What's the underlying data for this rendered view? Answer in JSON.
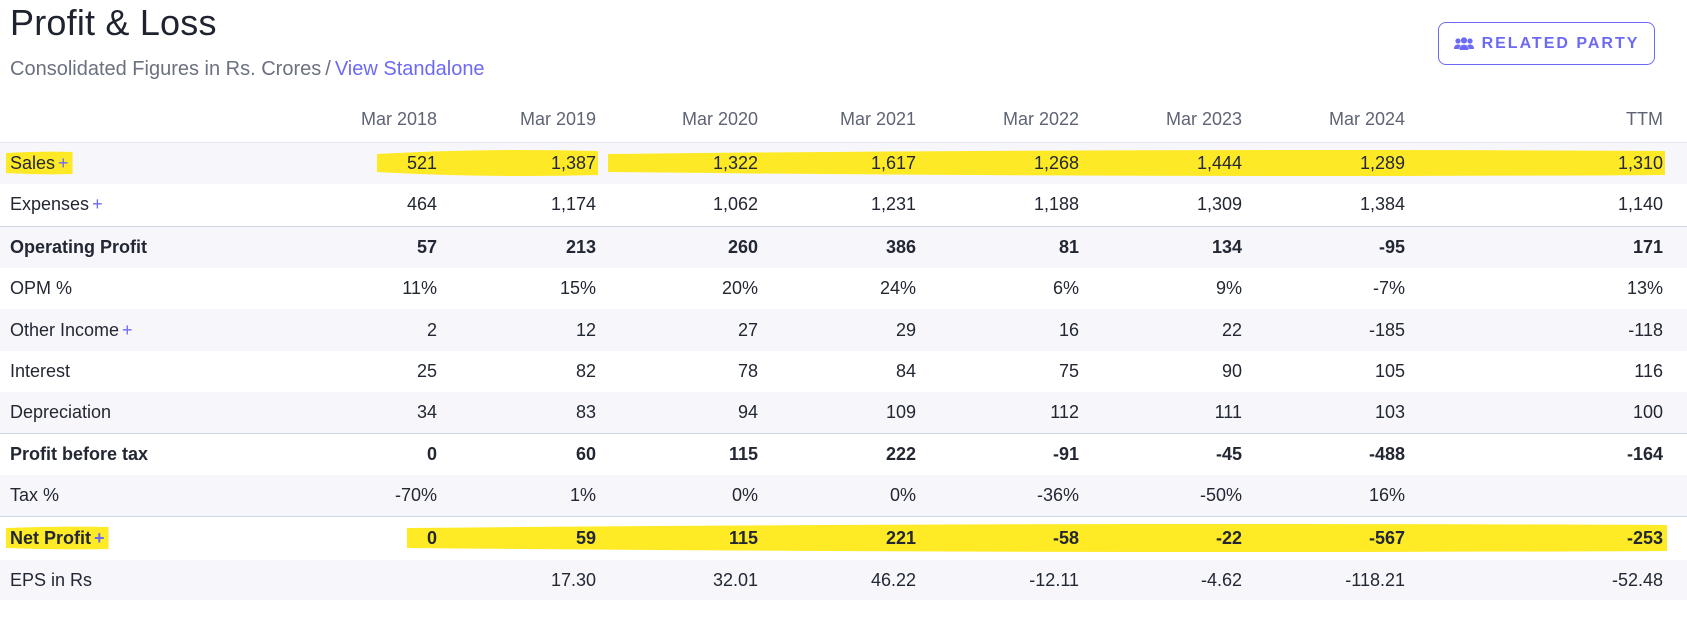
{
  "header": {
    "title": "Profit & Loss",
    "subtitle": "Consolidated Figures in Rs. Crores",
    "separator": "/",
    "view_link": "View Standalone",
    "related_party_label": "RELATED PARTY",
    "related_party_icon": "users-icon"
  },
  "table": {
    "columns": [
      "Mar 2018",
      "Mar 2019",
      "Mar 2020",
      "Mar 2021",
      "Mar 2022",
      "Mar 2023",
      "Mar 2024",
      "TTM"
    ],
    "rows": [
      {
        "label": "Sales",
        "expandable": true,
        "bold": false,
        "highlighted": true,
        "values": [
          "521",
          "1,387",
          "1,322",
          "1,617",
          "1,268",
          "1,444",
          "1,289",
          "1,310"
        ]
      },
      {
        "label": "Expenses",
        "expandable": true,
        "bold": false,
        "highlighted": false,
        "values": [
          "464",
          "1,174",
          "1,062",
          "1,231",
          "1,188",
          "1,309",
          "1,384",
          "1,140"
        ]
      },
      {
        "label": "Operating Profit",
        "expandable": false,
        "bold": true,
        "highlighted": false,
        "values": [
          "57",
          "213",
          "260",
          "386",
          "81",
          "134",
          "-95",
          "171"
        ]
      },
      {
        "label": "OPM %",
        "expandable": false,
        "bold": false,
        "highlighted": false,
        "values": [
          "11%",
          "15%",
          "20%",
          "24%",
          "6%",
          "9%",
          "-7%",
          "13%"
        ]
      },
      {
        "label": "Other Income",
        "expandable": true,
        "bold": false,
        "highlighted": false,
        "values": [
          "2",
          "12",
          "27",
          "29",
          "16",
          "22",
          "-185",
          "-118"
        ]
      },
      {
        "label": "Interest",
        "expandable": false,
        "bold": false,
        "highlighted": false,
        "values": [
          "25",
          "82",
          "78",
          "84",
          "75",
          "90",
          "105",
          "116"
        ]
      },
      {
        "label": "Depreciation",
        "expandable": false,
        "bold": false,
        "highlighted": false,
        "values": [
          "34",
          "83",
          "94",
          "109",
          "112",
          "111",
          "103",
          "100"
        ]
      },
      {
        "label": "Profit before tax",
        "expandable": false,
        "bold": true,
        "highlighted": false,
        "values": [
          "0",
          "60",
          "115",
          "222",
          "-91",
          "-45",
          "-488",
          "-164"
        ]
      },
      {
        "label": "Tax %",
        "expandable": false,
        "bold": false,
        "highlighted": false,
        "values": [
          "-70%",
          "1%",
          "0%",
          "0%",
          "-36%",
          "-50%",
          "16%",
          ""
        ]
      },
      {
        "label": "Net Profit",
        "expandable": true,
        "bold": true,
        "highlighted": true,
        "values": [
          "0",
          "59",
          "115",
          "221",
          "-58",
          "-22",
          "-567",
          "-253"
        ]
      },
      {
        "label": "EPS in Rs",
        "expandable": false,
        "bold": false,
        "highlighted": false,
        "values": [
          "",
          "17.30",
          "32.01",
          "46.22",
          "-12.11",
          "-4.62",
          "-118.21",
          "-52.48"
        ]
      }
    ]
  },
  "colors": {
    "accent": "#6c6af5",
    "highlight": "#ffe600",
    "stripe": "#f7f7fb"
  }
}
